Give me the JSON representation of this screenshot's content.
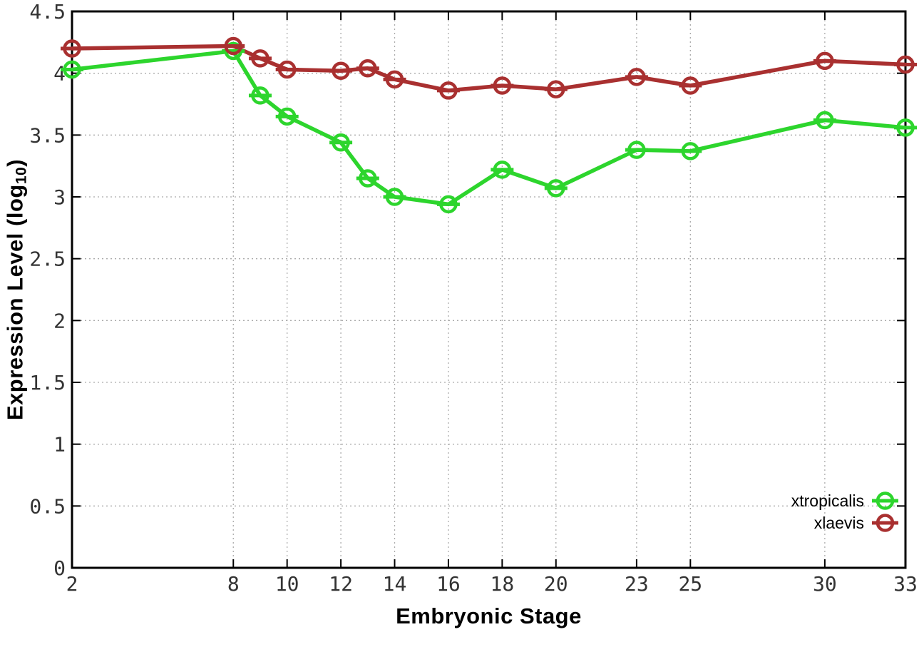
{
  "chart_data": {
    "type": "line",
    "title": "",
    "xlabel": "Embryonic Stage",
    "ylabel": "Expression Level (log10)",
    "ylabel_parts": {
      "prefix": "Expression Level (log",
      "sub": "10",
      "suffix": ")"
    },
    "xlim": [
      2,
      33
    ],
    "ylim": [
      0,
      4.5
    ],
    "x_ticks": [
      2,
      8,
      10,
      12,
      14,
      16,
      18,
      20,
      23,
      25,
      30,
      33
    ],
    "x_tick_labels": [
      "2",
      "8",
      "10",
      "12",
      "14",
      "16",
      "18",
      "20",
      "23",
      "25",
      "30",
      "33"
    ],
    "y_ticks": [
      0,
      0.5,
      1,
      1.5,
      2,
      2.5,
      3,
      3.5,
      4,
      4.5
    ],
    "y_tick_labels": [
      "0",
      "0.5",
      "1",
      "1.5",
      "2",
      "2.5",
      "3",
      "3.5",
      "4",
      "4.5"
    ],
    "grid": true,
    "legend_position": "inside-right-lower",
    "x": [
      2,
      8,
      9,
      10,
      12,
      13,
      14,
      16,
      18,
      20,
      23,
      25,
      30,
      33
    ],
    "series": [
      {
        "name": "xtropicalis",
        "color": "#2dd52d",
        "values": [
          4.03,
          4.18,
          3.82,
          3.65,
          3.44,
          3.15,
          3.0,
          2.94,
          3.22,
          3.07,
          3.38,
          3.37,
          3.62,
          3.56
        ]
      },
      {
        "name": "xlaevis",
        "color": "#a93030",
        "values": [
          4.2,
          4.22,
          4.12,
          4.03,
          4.02,
          4.04,
          3.95,
          3.86,
          3.9,
          3.87,
          3.97,
          3.9,
          4.1,
          4.07
        ]
      }
    ]
  },
  "colors": {
    "background": "#ffffff",
    "grid": "#ababab",
    "axis": "#000000",
    "tick_text": "#333333",
    "legend_text": "#000000"
  }
}
